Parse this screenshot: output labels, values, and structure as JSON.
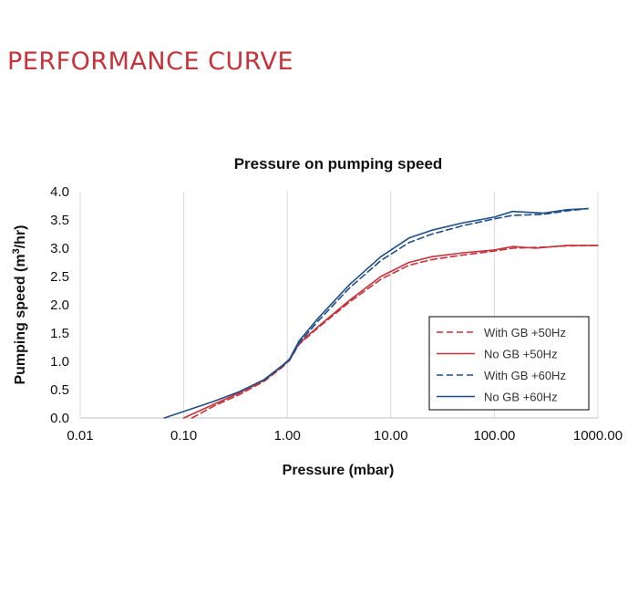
{
  "page_title": "PERFORMANCE CURVE",
  "chart_data": {
    "type": "line",
    "title": "Pressure on pumping speed",
    "xlabel": "Pressure (mbar)",
    "ylabel_main": "Pumping speed (m",
    "ylabel_sup": "3",
    "ylabel_end": "/hr)",
    "x_scale": "log",
    "xlim": [
      0.01,
      1000
    ],
    "ylim": [
      0,
      4
    ],
    "x_ticks": [
      0.01,
      0.1,
      1,
      10,
      100,
      1000
    ],
    "x_tick_labels": [
      "0.01",
      "0.10",
      "1.00",
      "10.00",
      "100.00",
      "1000.00"
    ],
    "y_ticks": [
      0,
      0.5,
      1,
      1.5,
      2,
      2.5,
      3,
      3.5,
      4
    ],
    "y_tick_labels": [
      "0.0",
      "0.5",
      "1.0",
      "1.5",
      "2.0",
      "2.5",
      "3.0",
      "3.5",
      "4.0"
    ],
    "grid": "vertical",
    "legend_position": "bottom-right",
    "series": [
      {
        "name": "With GB +50Hz",
        "color": "#c8323a",
        "dash": true,
        "points": [
          [
            0.12,
            0
          ],
          [
            0.2,
            0.22
          ],
          [
            0.35,
            0.42
          ],
          [
            0.6,
            0.65
          ],
          [
            0.9,
            0.9
          ],
          [
            1.05,
            1.02
          ],
          [
            1.3,
            1.3
          ],
          [
            2,
            1.6
          ],
          [
            4,
            2.05
          ],
          [
            8,
            2.45
          ],
          [
            15,
            2.7
          ],
          [
            25,
            2.8
          ],
          [
            50,
            2.88
          ],
          [
            100,
            2.95
          ],
          [
            150,
            3.0
          ],
          [
            300,
            3.02
          ],
          [
            500,
            3.04
          ],
          [
            1000,
            3.05
          ]
        ]
      },
      {
        "name": "No GB +50Hz",
        "color": "#c8323a",
        "dash": false,
        "points": [
          [
            0.1,
            0
          ],
          [
            0.2,
            0.25
          ],
          [
            0.35,
            0.45
          ],
          [
            0.6,
            0.67
          ],
          [
            0.9,
            0.92
          ],
          [
            1.05,
            1.02
          ],
          [
            1.3,
            1.32
          ],
          [
            2,
            1.62
          ],
          [
            4,
            2.08
          ],
          [
            8,
            2.5
          ],
          [
            15,
            2.75
          ],
          [
            25,
            2.85
          ],
          [
            50,
            2.92
          ],
          [
            100,
            2.97
          ],
          [
            150,
            3.03
          ],
          [
            250,
            3.0
          ],
          [
            500,
            3.05
          ],
          [
            1000,
            3.05
          ]
        ]
      },
      {
        "name": "With GB +60Hz",
        "color": "#1f4e89",
        "dash": true,
        "points": [
          [
            0.6,
            0.67
          ],
          [
            0.9,
            0.92
          ],
          [
            1.05,
            1.02
          ],
          [
            1.3,
            1.32
          ],
          [
            2,
            1.72
          ],
          [
            4,
            2.3
          ],
          [
            8,
            2.78
          ],
          [
            15,
            3.1
          ],
          [
            25,
            3.25
          ],
          [
            50,
            3.4
          ],
          [
            100,
            3.52
          ],
          [
            150,
            3.58
          ],
          [
            300,
            3.6
          ],
          [
            500,
            3.66
          ],
          [
            800,
            3.7
          ]
        ]
      },
      {
        "name": "No GB +60Hz",
        "color": "#1f4e89",
        "dash": false,
        "points": [
          [
            0.065,
            0
          ],
          [
            0.2,
            0.3
          ],
          [
            0.35,
            0.47
          ],
          [
            0.6,
            0.68
          ],
          [
            0.9,
            0.93
          ],
          [
            1.05,
            1.04
          ],
          [
            1.3,
            1.36
          ],
          [
            2,
            1.77
          ],
          [
            4,
            2.36
          ],
          [
            8,
            2.85
          ],
          [
            15,
            3.18
          ],
          [
            25,
            3.32
          ],
          [
            50,
            3.45
          ],
          [
            100,
            3.55
          ],
          [
            150,
            3.65
          ],
          [
            300,
            3.62
          ],
          [
            500,
            3.68
          ],
          [
            800,
            3.7
          ]
        ]
      }
    ]
  }
}
